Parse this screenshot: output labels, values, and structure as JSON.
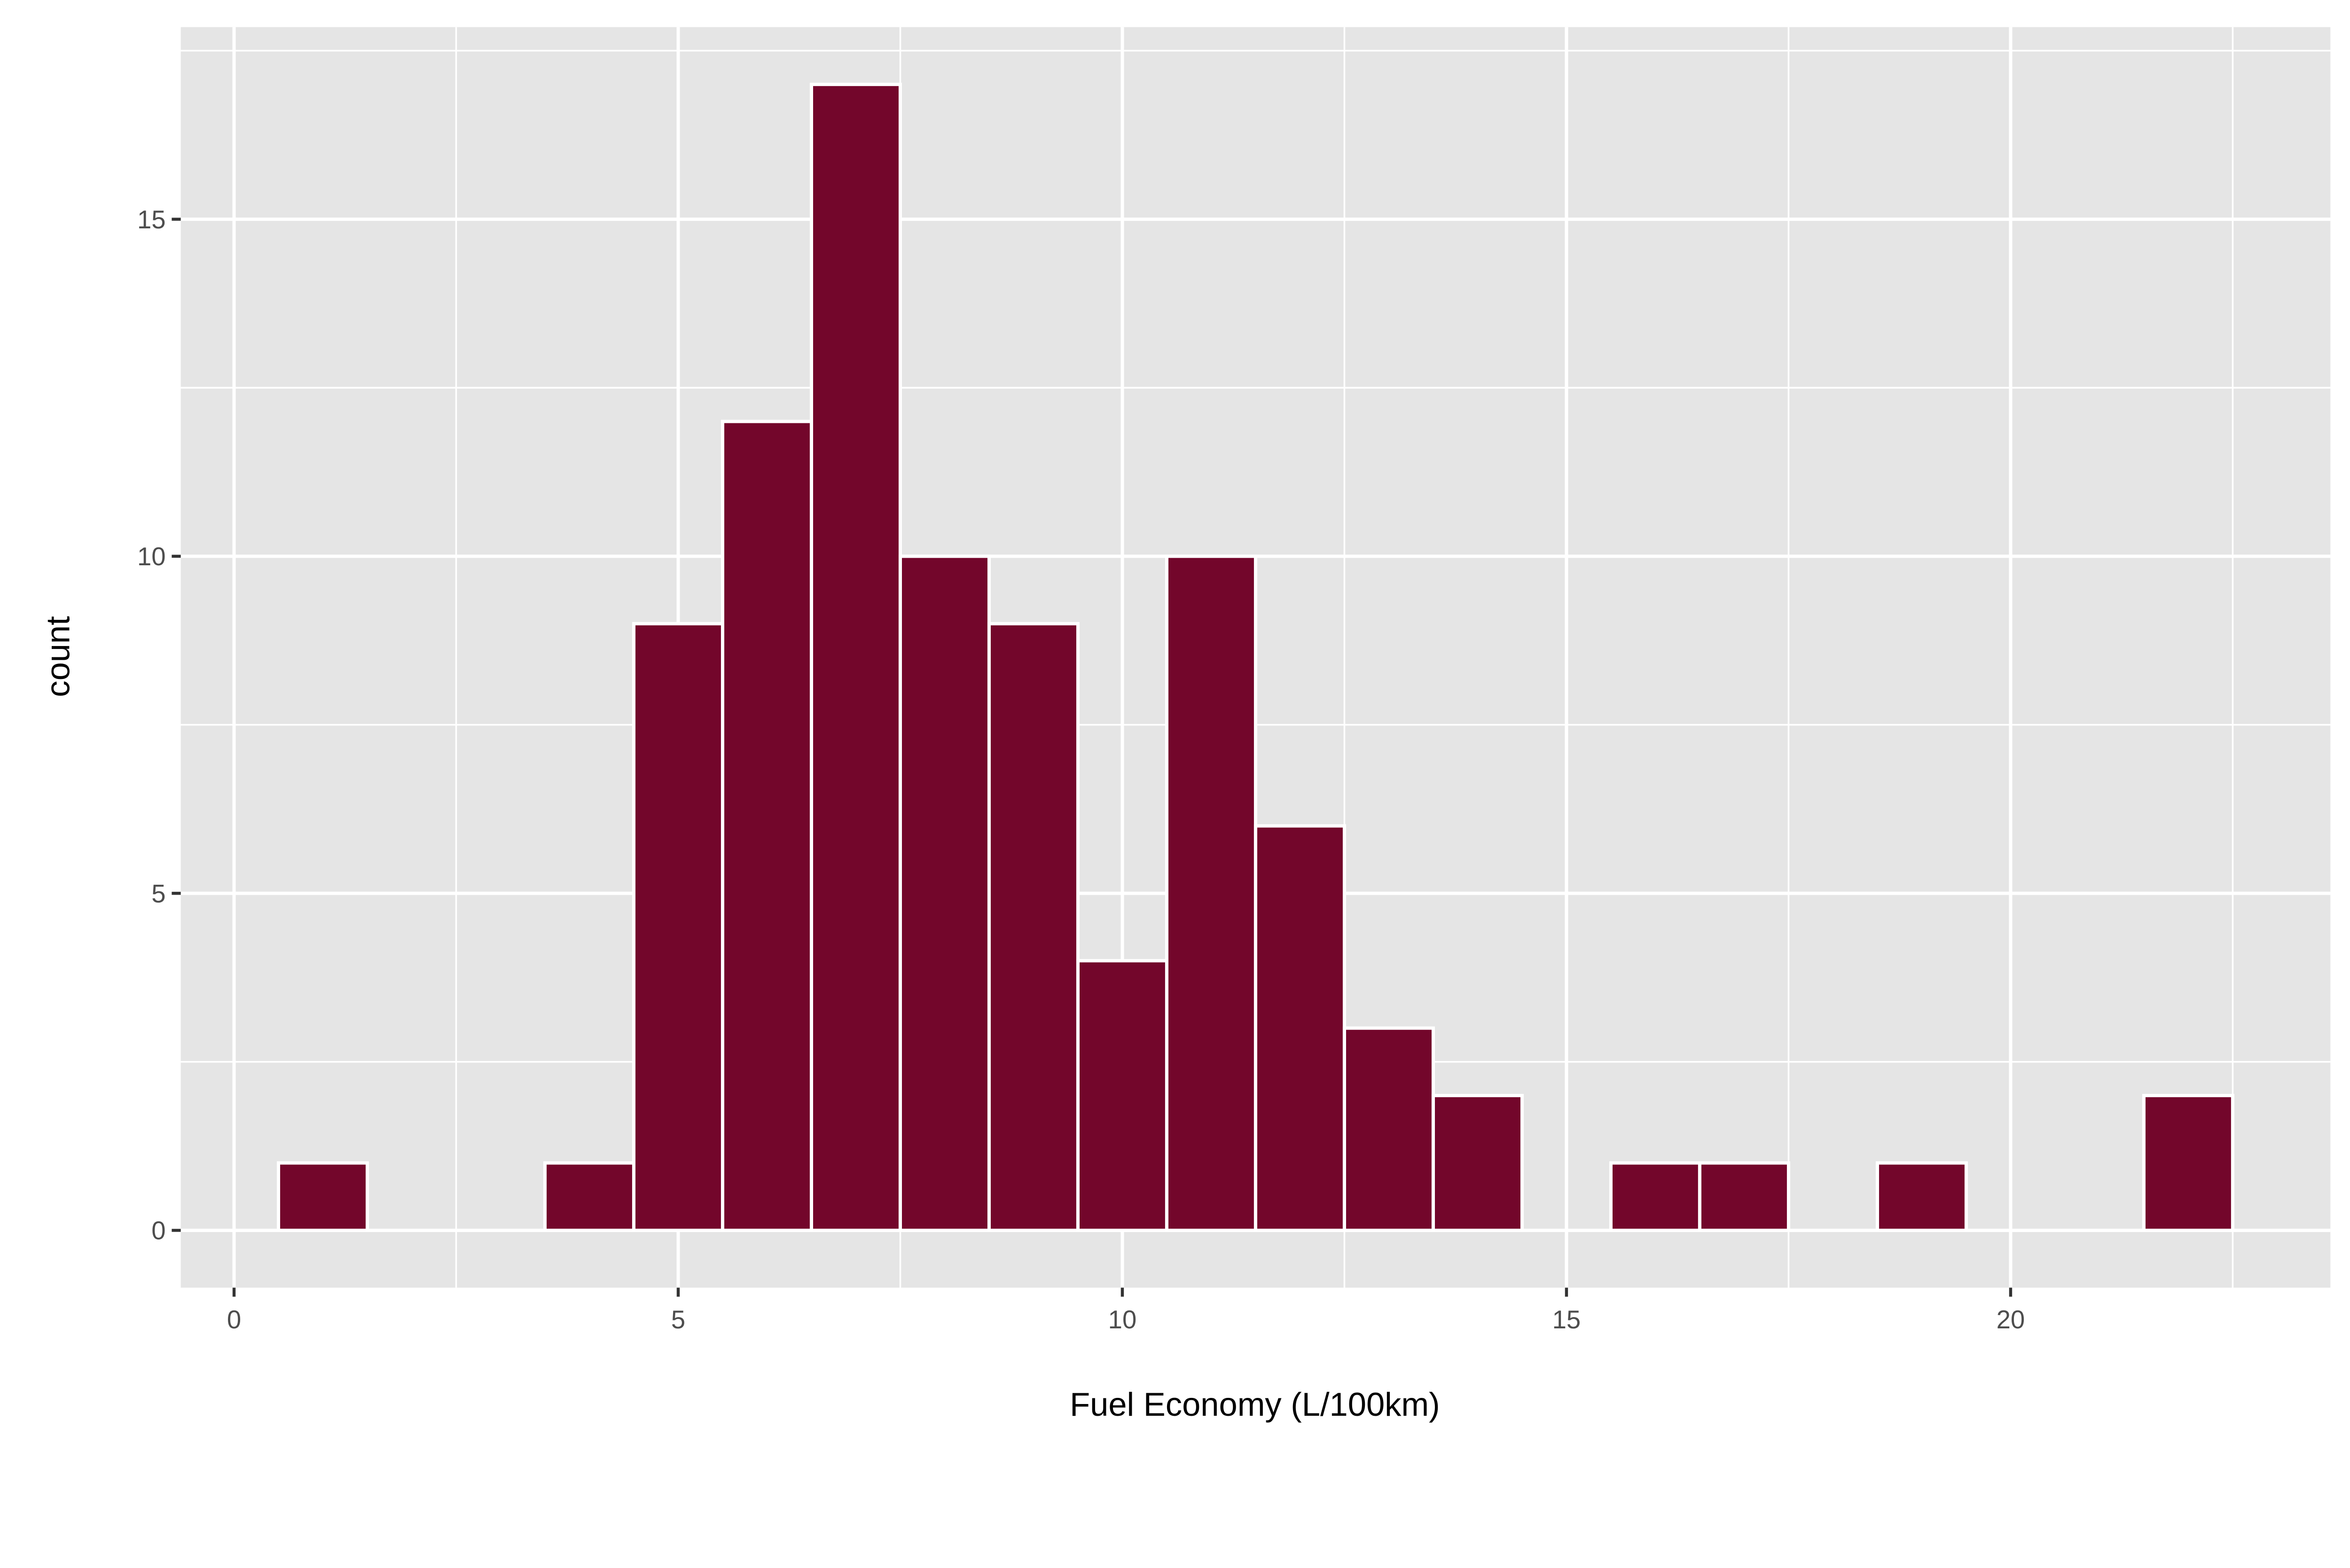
{
  "chart_data": {
    "type": "bar",
    "subtype": "histogram",
    "title": "",
    "xlabel": "Fuel Economy (L/100km)",
    "ylabel": "count",
    "bin_width": 1,
    "bin_centers": [
      1,
      4,
      5,
      6,
      7,
      8,
      9,
      10,
      11,
      12,
      13,
      14,
      16,
      17,
      19,
      22
    ],
    "values": [
      1,
      1,
      9,
      12,
      17,
      10,
      9,
      4,
      10,
      6,
      3,
      2,
      1,
      1,
      1,
      2
    ],
    "xlim": [
      -0.6,
      23.6
    ],
    "ylim": [
      -0.85,
      17.85
    ],
    "x_ticks": [
      0,
      5,
      10,
      15,
      20
    ],
    "x_tick_labels": [
      "0",
      "5",
      "10",
      "15",
      "20"
    ],
    "y_ticks": [
      0,
      5,
      10,
      15
    ],
    "y_tick_labels": [
      "0",
      "5",
      "10",
      "15"
    ],
    "grid": true,
    "legend": "none",
    "colors": {
      "bar_fill": "#73062b",
      "bar_outline": "#ffffff",
      "panel_background": "#e5e5e5",
      "grid": "#ffffff"
    }
  }
}
